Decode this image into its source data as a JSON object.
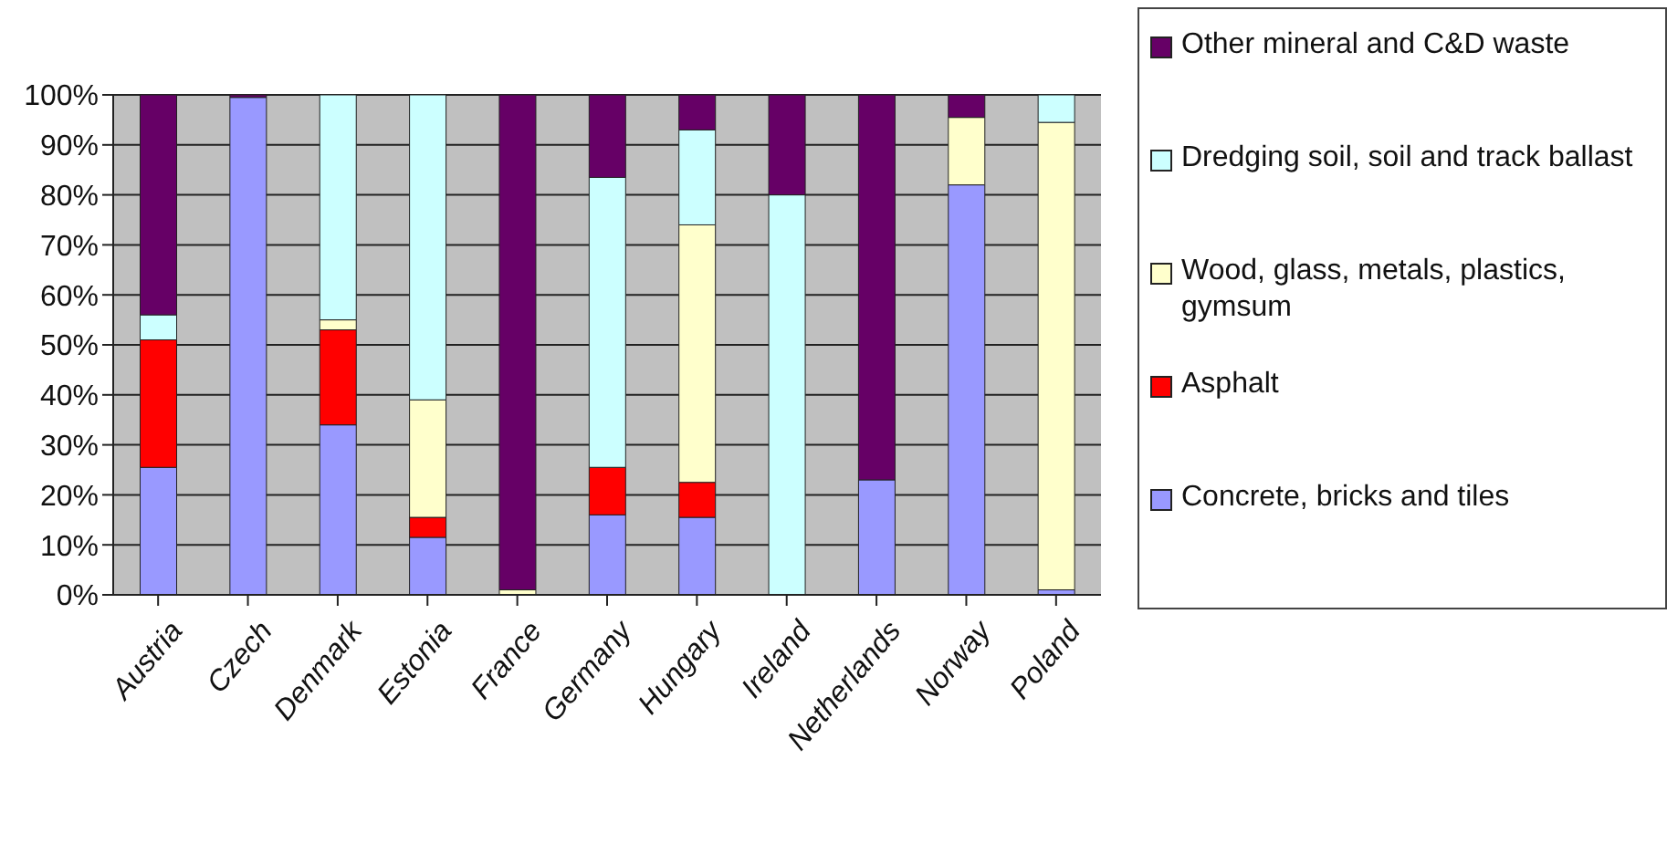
{
  "chart_data": {
    "type": "bar",
    "stacked": true,
    "categories": [
      "Austria",
      "Czech",
      "Denmark",
      "Estonia",
      "France",
      "Germany",
      "Hungary",
      "Ireland",
      "Netherlands",
      "Norway",
      "Poland"
    ],
    "series": [
      {
        "name": "Concrete, bricks and tiles",
        "color": "#9999ff",
        "values": [
          25.5,
          99.5,
          34,
          11.5,
          0,
          16,
          15.5,
          0,
          23,
          82,
          1
        ]
      },
      {
        "name": "Asphalt",
        "color": "#ff0000",
        "values": [
          25.5,
          0,
          19,
          4,
          0,
          9.5,
          7,
          0,
          0,
          0,
          0
        ]
      },
      {
        "name": "Wood, glass, metals, plastics, gymsum",
        "color": "#ffffcc",
        "values": [
          0,
          0,
          2,
          23.5,
          1,
          0,
          51.5,
          0,
          0,
          13.5,
          93.5
        ]
      },
      {
        "name": "Dredging soil, soil and track ballast",
        "color": "#ccffff",
        "values": [
          5,
          0,
          45,
          61,
          0,
          58,
          19,
          80,
          0,
          0,
          5.5
        ]
      },
      {
        "name": "Other mineral and C&D waste",
        "color": "#660066",
        "values": [
          44,
          0.5,
          0,
          0,
          99,
          16.5,
          7,
          20,
          77,
          4.5,
          0
        ]
      }
    ],
    "ylim": [
      0,
      100
    ],
    "yticks": [
      {
        "value": 0,
        "label": "0%"
      },
      {
        "value": 10,
        "label": "10%"
      },
      {
        "value": 20,
        "label": "20%"
      },
      {
        "value": 30,
        "label": "30%"
      },
      {
        "value": 40,
        "label": "40%"
      },
      {
        "value": 50,
        "label": "50%"
      },
      {
        "value": 60,
        "label": "60%"
      },
      {
        "value": 70,
        "label": "70%"
      },
      {
        "value": 80,
        "label": "80%"
      },
      {
        "value": 90,
        "label": "90%"
      },
      {
        "value": 100,
        "label": "100%"
      }
    ],
    "grid": "y",
    "legend": "right"
  }
}
